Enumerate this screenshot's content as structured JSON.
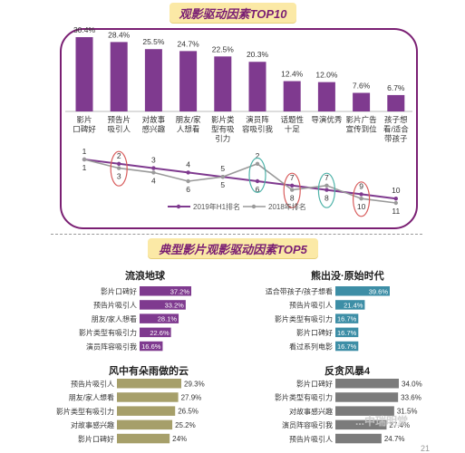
{
  "header": {
    "top_title": "观影驱动因素TOP10",
    "section_title": "典型影片观影驱动因素TOP5",
    "watermark": "...中瑞明堂",
    "page_number": "21"
  },
  "colors": {
    "purple": "#7f3a8f",
    "teal": "#3d8ea6",
    "olive": "#a69f6a",
    "gray": "#7b7b7b",
    "banner": "#fbe9a6",
    "circle_red": "#d85c5c",
    "circle_teal": "#4fb3a9"
  },
  "chart_data": [
    {
      "type": "bar",
      "title": "观影驱动因素TOP10",
      "categories": [
        "影片口碑好",
        "预告片吸引人",
        "对故事感兴趣",
        "朋友/家人想看",
        "影片类型有吸引力",
        "演员阵容吸引我",
        "话题性十足",
        "导演优秀",
        "影片广告宣传到位",
        "孩子想看/适合带孩子"
      ],
      "values": [
        30.4,
        28.4,
        25.5,
        24.7,
        22.5,
        20.3,
        12.4,
        12.0,
        7.6,
        6.7
      ],
      "value_labels": [
        "30.4%",
        "28.4%",
        "25.5%",
        "24.7%",
        "22.5%",
        "20.3%",
        "12.4%",
        "12.0%",
        "7.6%",
        "6.7%"
      ],
      "ylim": [
        0,
        35
      ],
      "color": "#7f3a8f"
    },
    {
      "type": "line",
      "categories": [
        "影片口碑好",
        "预告片吸引人",
        "对故事感兴趣",
        "朋友/家人想看",
        "影片类型有吸引力",
        "演员阵容吸引我",
        "话题性十足",
        "导演优秀",
        "影片广告宣传到位",
        "孩子想看/适合带孩子"
      ],
      "series": [
        {
          "name": "2019年H1排名",
          "values": [
            1,
            2,
            3,
            4,
            5,
            6,
            7,
            8,
            9,
            10
          ],
          "color": "#7f3a8f"
        },
        {
          "name": "2018年排名",
          "values": [
            1,
            3,
            4,
            6,
            5,
            2,
            8,
            7,
            10,
            11
          ],
          "color": "#9a9a9a"
        }
      ],
      "highlighted_indices": [
        1,
        5,
        6,
        7,
        8
      ],
      "legend": "bottom"
    },
    {
      "type": "bar",
      "orientation": "horizontal",
      "title": "流浪地球",
      "categories": [
        "影片口碑好",
        "预告片吸引人",
        "朋友/家人想看",
        "影片类型有吸引力",
        "演员阵容吸引我"
      ],
      "values": [
        37.2,
        33.2,
        28.1,
        22.6,
        16.6
      ],
      "value_labels": [
        "37.2%",
        "33.2%",
        "28.1%",
        "22.6%",
        "16.6%"
      ],
      "color": "#7f3a8f"
    },
    {
      "type": "bar",
      "orientation": "horizontal",
      "title": "熊出没·原始时代",
      "categories": [
        "适合带孩子/孩子想看",
        "预告片吸引人",
        "影片类型有吸引力",
        "影片口碑好",
        "看过系列电影"
      ],
      "values": [
        39.6,
        21.4,
        16.7,
        16.7,
        16.7
      ],
      "value_labels": [
        "39.6%",
        "21.4%",
        "16.7%",
        "16.7%",
        "16.7%"
      ],
      "color": "#3d8ea6"
    },
    {
      "type": "bar",
      "orientation": "horizontal",
      "title": "风中有朵雨做的云",
      "categories": [
        "预告片吸引人",
        "朋友/家人想看",
        "影片类型有吸引力",
        "对故事感兴趣",
        "影片口碑好"
      ],
      "values": [
        29.3,
        27.9,
        26.5,
        25.2,
        24
      ],
      "value_labels": [
        "29.3%",
        "27.9%",
        "26.5%",
        "25.2%",
        "24%"
      ],
      "color": "#a69f6a"
    },
    {
      "type": "bar",
      "orientation": "horizontal",
      "title": "反贪风暴4",
      "categories": [
        "影片口碑好",
        "影片类型有吸引力",
        "对故事感兴趣",
        "演员阵容吸引我",
        "预告片吸引人"
      ],
      "values": [
        34.0,
        33.6,
        31.5,
        27.4,
        24.7
      ],
      "value_labels": [
        "34.0%",
        "33.6%",
        "31.5%",
        "27.4%",
        "24.7%"
      ],
      "color": "#7b7b7b"
    }
  ]
}
